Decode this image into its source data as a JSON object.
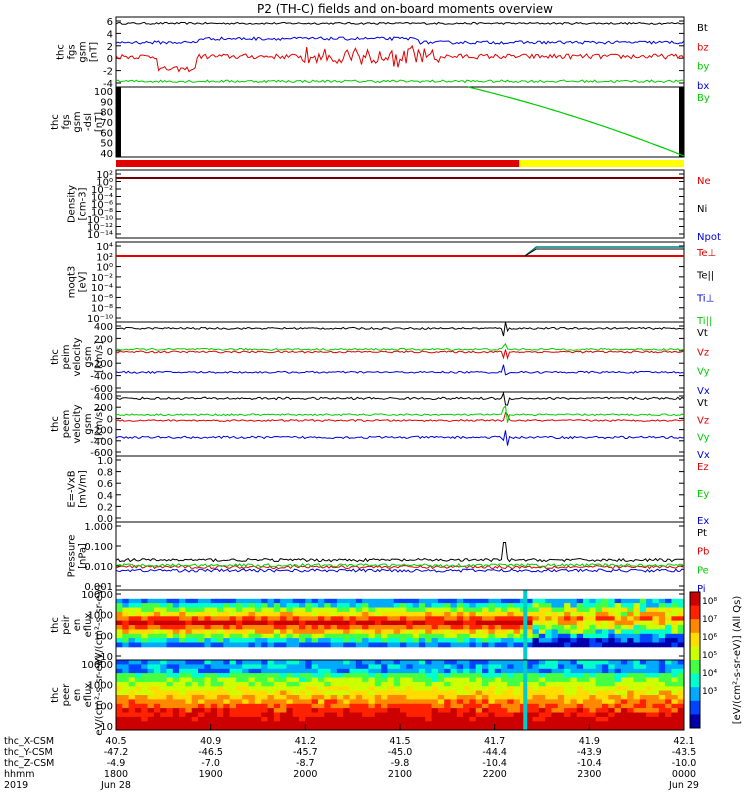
{
  "title": "P2 (TH-C) fields and on-board moments overview",
  "colors": {
    "black": "#000000",
    "red": "#e00000",
    "green": "#00cc00",
    "blue": "#0000dd",
    "yellow": "#ffff00",
    "teal": "#008080"
  },
  "chart_data": [
    {
      "type": "line",
      "ylabel": "thc fgs gsm [nT]",
      "yticks": [
        "6",
        "4",
        "2",
        "0",
        "-2",
        "-4"
      ],
      "ylim": [
        -4.5,
        6.5
      ],
      "scale": "linear",
      "series": [
        {
          "name": "Bt",
          "color": "#000000",
          "base": 5.5,
          "noise": 0.3
        },
        {
          "name": "bz",
          "color": "#e00000",
          "base": 0.3,
          "noise": 0.8
        },
        {
          "name": "by",
          "color": "#00cc00",
          "base": -3.6,
          "noise": 0.4
        },
        {
          "name": "bx",
          "color": "#0000dd",
          "base": 2.5,
          "noise": 0.5
        }
      ]
    },
    {
      "type": "line",
      "ylabel": "thc fgs gsm -dsl [nT]",
      "yticks": [
        "100",
        "90",
        "80",
        "70",
        "60",
        "50",
        "40"
      ],
      "ylim": [
        33,
        103
      ],
      "scale": "linear",
      "series": [
        {
          "name": "By",
          "color": "#00cc00",
          "points": [
            [
              0.62,
              103
            ],
            [
              1.0,
              34
            ]
          ]
        }
      ]
    },
    {
      "type": "line",
      "ylabel": "Density [cm-3]",
      "yticks": [
        "10²",
        "10⁰",
        "10⁻²",
        "10⁻⁴",
        "10⁻⁶",
        "10⁻⁸",
        "10⁻¹⁰",
        "10⁻¹²",
        "10⁻¹⁴"
      ],
      "scale": "log",
      "series": [
        {
          "name": "Ne",
          "color": "#e00000"
        },
        {
          "name": "Ni",
          "color": "#000000"
        },
        {
          "name": "Npot",
          "color": "#0000dd"
        }
      ]
    },
    {
      "type": "line",
      "ylabel": "moqt3 [eV]",
      "yticks": [
        "10⁴",
        "10²",
        "10⁰",
        "10⁻²",
        "10⁻⁴",
        "10⁻⁶",
        "10⁻⁸",
        "10⁻¹⁰"
      ],
      "scale": "log",
      "series": [
        {
          "name": "Te⊥",
          "color": "#e00000"
        },
        {
          "name": "Te||",
          "color": "#000000"
        },
        {
          "name": "Ti⊥",
          "color": "#0000dd"
        },
        {
          "name": "Ti||",
          "color": "#00cc00"
        }
      ]
    },
    {
      "type": "line",
      "ylabel": "thc peim velocity gsm [km/s]",
      "yticks": [
        "400",
        "200",
        "0",
        "-200",
        "-400",
        "-600"
      ],
      "ylim": [
        -650,
        450
      ],
      "scale": "linear",
      "series": [
        {
          "name": "Vt",
          "color": "#000000",
          "base": 350,
          "noise": 15
        },
        {
          "name": "Vz",
          "color": "#e00000",
          "base": -20,
          "noise": 15
        },
        {
          "name": "Vy",
          "color": "#00cc00",
          "base": 20,
          "noise": 15
        },
        {
          "name": "Vx",
          "color": "#0000dd",
          "base": -340,
          "noise": 15
        }
      ]
    },
    {
      "type": "line",
      "ylabel": "thc peem velocity gsm [km/s]",
      "yticks": [
        "400",
        "200",
        "0",
        "-200",
        "-400",
        "-600"
      ],
      "ylim": [
        -650,
        450
      ],
      "scale": "linear",
      "series": [
        {
          "name": "Vt",
          "color": "#000000",
          "base": 340,
          "noise": 20
        },
        {
          "name": "Vz",
          "color": "#e00000",
          "base": -40,
          "noise": 15
        },
        {
          "name": "Vy",
          "color": "#00cc00",
          "base": 60,
          "noise": 15
        },
        {
          "name": "Vx",
          "color": "#0000dd",
          "base": -330,
          "noise": 20
        }
      ]
    },
    {
      "type": "line",
      "ylabel": "E=-VxB [mV/m]",
      "yticks": [
        "1.0",
        "0.8",
        "0.6",
        "0.4",
        "0.2",
        "0.0"
      ],
      "ylim": [
        0,
        1
      ],
      "scale": "linear",
      "series": [
        {
          "name": "Ez",
          "color": "#e00000"
        },
        {
          "name": "Ey",
          "color": "#00cc00"
        },
        {
          "name": "Ex",
          "color": "#0000dd"
        }
      ]
    },
    {
      "type": "line",
      "ylabel": "Pressure [nPa]",
      "yticks": [
        "1.000",
        "0.100",
        "0.010",
        "0.001"
      ],
      "scale": "log",
      "series": [
        {
          "name": "Pt",
          "color": "#000000",
          "base": 0.02
        },
        {
          "name": "Pb",
          "color": "#e00000",
          "base": 0.009
        },
        {
          "name": "Pe",
          "color": "#00cc00",
          "base": 0.011
        },
        {
          "name": "Pi",
          "color": "#0000dd",
          "base": 0.006
        }
      ]
    },
    {
      "type": "heatmap",
      "ylabel": "thc peir en eflux eV/(cm²-s-sr-eV)",
      "yticks": [
        "10000",
        "1000",
        "100",
        "10"
      ],
      "scale": "log"
    },
    {
      "type": "heatmap",
      "ylabel": "thc peer en eflux eV/(cm²-s-sr-eV)",
      "yticks": [
        "10000",
        "1000",
        "100",
        "10"
      ],
      "scale": "log"
    }
  ],
  "colorbar": {
    "ticks": [
      "10⁸",
      "10⁷",
      "10⁶",
      "10⁵",
      "10⁴",
      "10³"
    ],
    "label": "[eV/(cm²-s-sr-eV)] (All Qs)"
  },
  "xaxis": {
    "row_labels": [
      "thc_X-CSM",
      "thc_Y-CSM",
      "thc_Z-CSM",
      "hhmm",
      "2019"
    ],
    "ticks": [
      {
        "x": "40.5",
        "y": "-47.2",
        "z": "-4.9",
        "t": "1800",
        "d": "Jun 28"
      },
      {
        "x": "40.9",
        "y": "-46.5",
        "z": "-7.0",
        "t": "1900",
        "d": ""
      },
      {
        "x": "41.2",
        "y": "-45.7",
        "z": "-8.7",
        "t": "2000",
        "d": ""
      },
      {
        "x": "41.5",
        "y": "-45.0",
        "z": "-9.8",
        "t": "2100",
        "d": ""
      },
      {
        "x": "41.7",
        "y": "-44.4",
        "z": "-10.4",
        "t": "2200",
        "d": ""
      },
      {
        "x": "41.9",
        "y": "-43.9",
        "z": "-10.4",
        "t": "2300",
        "d": ""
      },
      {
        "x": "42.1",
        "y": "-43.5",
        "z": "-10.0",
        "t": "0000",
        "d": "Jun 29"
      }
    ]
  }
}
